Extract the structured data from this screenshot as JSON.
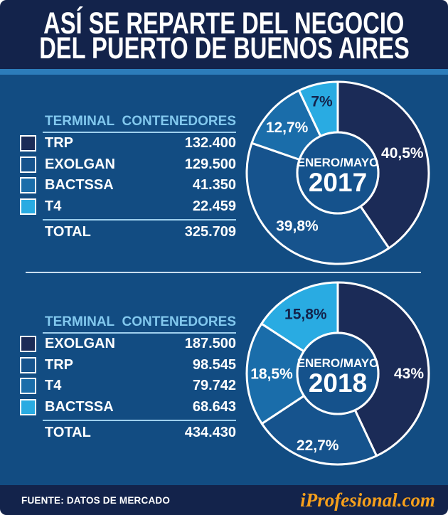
{
  "meta": {
    "title_line1": "ASÍ SE REPARTE DEL NEGOCIO",
    "title_line2": "DEL PUERTO DE BUENOS AIRES",
    "source": "FUENTE: DATOS DE MERCADO",
    "brand": "iProfesional.com"
  },
  "colors": {
    "header_navy": "#13234B",
    "background_blue": "#124C82",
    "accent_stripe": "#2C7CBA",
    "slice_navy": "#1B2B57",
    "slice_medium": "#16538D",
    "slice_bright": "#1A6DAA",
    "slice_cyan": "#29ABE2",
    "table_header_text": "#82C8EE",
    "brand_orange": "#F7A01B",
    "donut_center_fill": "#15528C"
  },
  "sections": [
    {
      "year": "2017",
      "table": {
        "columns": [
          "TERMINAL",
          "CONTENEDORES"
        ],
        "rows": [
          {
            "terminal": "TRP",
            "contenedores": "132.400",
            "color": "#1B2B57"
          },
          {
            "terminal": "EXOLGAN",
            "contenedores": "129.500",
            "color": "#16538D"
          },
          {
            "terminal": "BACTSSA",
            "contenedores": "41.350",
            "color": "#1A6DAA"
          },
          {
            "terminal": "T4",
            "contenedores": "22.459",
            "color": "#29ABE2"
          }
        ],
        "total_label": "TOTAL",
        "total_value": "325.709"
      }
    },
    {
      "year": "2018",
      "table": {
        "columns": [
          "TERMINAL",
          "CONTENEDORES"
        ],
        "rows": [
          {
            "terminal": "EXOLGAN",
            "contenedores": "187.500",
            "color": "#1B2B57"
          },
          {
            "terminal": "TRP",
            "contenedores": "98.545",
            "color": "#16538D"
          },
          {
            "terminal": "T4",
            "contenedores": "79.742",
            "color": "#1A6DAA"
          },
          {
            "terminal": "BACTSSA",
            "contenedores": "68.643",
            "color": "#29ABE2"
          }
        ],
        "total_label": "TOTAL",
        "total_value": "434.430"
      }
    }
  ],
  "chart_data": [
    {
      "type": "pie",
      "donut": true,
      "title": "ENERO/MAYO 2017",
      "center_line1": "ENERO/MAYO",
      "center_line2": "2017",
      "categories": [
        "TRP",
        "EXOLGAN",
        "BACTSSA",
        "T4"
      ],
      "values": [
        40.5,
        39.8,
        12.7,
        7
      ],
      "value_labels": [
        "40,5%",
        "39,8%",
        "12,7%",
        "7%"
      ],
      "containers": [
        132400,
        129500,
        41350,
        22459
      ],
      "total_containers": 325709,
      "colors": [
        "#1B2B57",
        "#16538D",
        "#1A6DAA",
        "#29ABE2"
      ],
      "label_colors": [
        "#FFFFFF",
        "#FFFFFF",
        "#FFFFFF",
        "#13234B"
      ],
      "start_angle_deg": 0,
      "direction": "clockwise",
      "legend_position": "table-left"
    },
    {
      "type": "pie",
      "donut": true,
      "title": "ENERO/MAYO 2018",
      "center_line1": "ENERO/MAYO",
      "center_line2": "2018",
      "categories": [
        "EXOLGAN",
        "TRP",
        "T4",
        "BACTSSA"
      ],
      "values": [
        43,
        22.7,
        18.5,
        15.8
      ],
      "value_labels": [
        "43%",
        "22,7%",
        "18,5%",
        "15,8%"
      ],
      "containers": [
        187500,
        98545,
        79742,
        68643
      ],
      "total_containers": 434430,
      "colors": [
        "#1B2B57",
        "#16538D",
        "#1A6DAA",
        "#29ABE2"
      ],
      "label_colors": [
        "#FFFFFF",
        "#FFFFFF",
        "#FFFFFF",
        "#13234B"
      ],
      "start_angle_deg": 0,
      "direction": "clockwise",
      "legend_position": "table-left"
    }
  ]
}
